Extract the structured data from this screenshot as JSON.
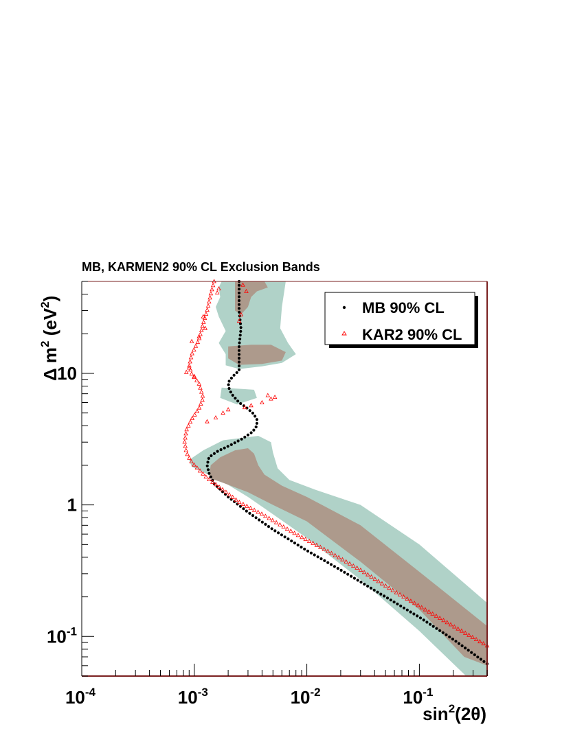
{
  "chart_data": {
    "type": "scatter",
    "title": "MB, KARMEN2 90% CL Exclusion Bands",
    "x_axis": {
      "label_base": "sin",
      "label_sup": "2",
      "label_rest": "(2θ)",
      "scale": "log",
      "range": [
        0.0001,
        0.4
      ],
      "tick_labels": [
        {
          "value": 0.0001,
          "base": "10",
          "exp": "-4"
        },
        {
          "value": 0.001,
          "base": "10",
          "exp": "-3"
        },
        {
          "value": 0.01,
          "base": "10",
          "exp": "-2"
        },
        {
          "value": 0.1,
          "base": "10",
          "exp": "-1"
        }
      ]
    },
    "y_axis": {
      "label_prefix": "Δ",
      "label_base": " m",
      "label_sup": "2",
      "label_mid": " (eV",
      "label_sup2": "2",
      "label_end": ")",
      "scale": "log",
      "range": [
        0.05,
        50
      ],
      "tick_labels": [
        {
          "value": 0.1,
          "base": "10",
          "exp": "-1"
        },
        {
          "value": 1,
          "text": "1"
        },
        {
          "value": 10,
          "text": "10"
        }
      ]
    },
    "legend": {
      "position": "top-right",
      "entries": [
        {
          "label": "MB 90% CL",
          "marker": "dot",
          "color": "#000000"
        },
        {
          "label": "KAR2 90% CL",
          "marker": "open-triangle",
          "color": "#ff0000"
        }
      ]
    },
    "colors": {
      "outer_band": "#b0d2c8",
      "inner_band": "#ad9a8c",
      "mb": "#000000",
      "kar2": "#ff0000",
      "frame_right_bottom": "#7a1f1f"
    },
    "bands": {
      "outer": [
        [
          [
            0.0012,
            50
          ],
          [
            0.0065,
            50
          ],
          [
            0.006,
            32
          ],
          [
            0.0058,
            22
          ],
          [
            0.0068,
            17
          ],
          [
            0.008,
            14
          ],
          [
            0.006,
            12
          ],
          [
            0.004,
            11.3
          ],
          [
            0.0025,
            10.8
          ],
          [
            0.0019,
            11.5
          ],
          [
            0.0019,
            14
          ],
          [
            0.00165,
            17
          ],
          [
            0.0019,
            21
          ],
          [
            0.00165,
            27
          ],
          [
            0.00155,
            32
          ],
          [
            0.0017,
            38
          ],
          [
            0.00165,
            45
          ],
          [
            0.00175,
            50
          ]
        ],
        [
          [
            0.00175,
            7.8
          ],
          [
            0.0034,
            7.5
          ],
          [
            0.0036,
            6.5
          ],
          [
            0.0024,
            5.8
          ],
          [
            0.0017,
            6.5
          ]
        ],
        [
          [
            0.0012,
            2.6
          ],
          [
            0.0018,
            3.1
          ],
          [
            0.0037,
            3.35
          ],
          [
            0.0048,
            3.0
          ],
          [
            0.005,
            2.5
          ],
          [
            0.0055,
            1.9
          ],
          [
            0.007,
            1.55
          ],
          [
            0.012,
            1.3
          ],
          [
            0.03,
            1.0
          ],
          [
            0.1,
            0.5
          ],
          [
            0.4,
            0.18
          ],
          [
            0.4,
            0.05
          ],
          [
            0.26,
            0.05
          ],
          [
            0.1,
            0.11
          ],
          [
            0.03,
            0.27
          ],
          [
            0.01,
            0.56
          ],
          [
            0.005,
            0.85
          ],
          [
            0.003,
            1.15
          ],
          [
            0.0018,
            1.5
          ],
          [
            0.00095,
            1.95
          ],
          [
            0.0009,
            2.2
          ]
        ]
      ],
      "inner": [
        [
          [
            0.0023,
            50
          ],
          [
            0.0042,
            50
          ],
          [
            0.0045,
            45
          ],
          [
            0.0036,
            42
          ],
          [
            0.0032,
            38
          ],
          [
            0.003,
            32
          ],
          [
            0.0026,
            28
          ],
          [
            0.0023,
            30
          ]
        ],
        [
          [
            0.002,
            16
          ],
          [
            0.0032,
            16.5
          ],
          [
            0.0048,
            16.5
          ],
          [
            0.0065,
            14.5
          ],
          [
            0.006,
            12.5
          ],
          [
            0.004,
            11.8
          ],
          [
            0.0025,
            11.6
          ],
          [
            0.002,
            13
          ]
        ],
        [
          [
            0.0014,
            2.0
          ],
          [
            0.0017,
            2.3
          ],
          [
            0.0023,
            2.6
          ],
          [
            0.003,
            2.7
          ],
          [
            0.0034,
            2.45
          ],
          [
            0.0037,
            2.0
          ],
          [
            0.0042,
            1.7
          ],
          [
            0.006,
            1.4
          ],
          [
            0.01,
            1.15
          ],
          [
            0.03,
            0.7
          ],
          [
            0.1,
            0.31
          ],
          [
            0.4,
            0.12
          ],
          [
            0.4,
            0.06
          ],
          [
            0.25,
            0.07
          ],
          [
            0.1,
            0.16
          ],
          [
            0.03,
            0.37
          ],
          [
            0.01,
            0.75
          ],
          [
            0.005,
            1.0
          ],
          [
            0.003,
            1.25
          ],
          [
            0.0017,
            1.5
          ],
          [
            0.00135,
            1.6
          ]
        ]
      ]
    },
    "series": [
      {
        "name": "MB 90% CL",
        "marker": "dot",
        "curve": [
          [
            0.0025,
            50
          ],
          [
            0.0025,
            30
          ],
          [
            0.0026,
            22
          ],
          [
            0.0025,
            16
          ],
          [
            0.0025,
            12
          ],
          [
            0.0025,
            10.5
          ],
          [
            0.0022,
            9.5
          ],
          [
            0.002,
            8.5
          ],
          [
            0.00205,
            7.5
          ],
          [
            0.0022,
            6.8
          ],
          [
            0.0025,
            6.0
          ],
          [
            0.0029,
            5.5
          ],
          [
            0.0033,
            5.0
          ],
          [
            0.0036,
            4.5
          ],
          [
            0.0036,
            4.0
          ],
          [
            0.0033,
            3.6
          ],
          [
            0.0027,
            3.2
          ],
          [
            0.0021,
            2.85
          ],
          [
            0.0016,
            2.55
          ],
          [
            0.00135,
            2.3
          ],
          [
            0.0013,
            2.0
          ],
          [
            0.00135,
            1.75
          ],
          [
            0.0015,
            1.45
          ],
          [
            0.002,
            1.15
          ],
          [
            0.003,
            0.88
          ],
          [
            0.005,
            0.65
          ],
          [
            0.01,
            0.45
          ],
          [
            0.02,
            0.32
          ],
          [
            0.05,
            0.2
          ],
          [
            0.1,
            0.14
          ],
          [
            0.2,
            0.095
          ],
          [
            0.4,
            0.062
          ]
        ],
        "count": 150
      },
      {
        "name": "KAR2 90% CL",
        "marker": "open-triangle",
        "curve": [
          [
            0.0015,
            50
          ],
          [
            0.0014,
            40
          ],
          [
            0.0013,
            30
          ],
          [
            0.0012,
            24
          ],
          [
            0.0011,
            18
          ],
          [
            0.00095,
            14
          ],
          [
            0.0009,
            11.5
          ],
          [
            0.00095,
            9.8
          ],
          [
            0.0011,
            8.4
          ],
          [
            0.0012,
            6.5
          ],
          [
            0.0011,
            5.4
          ],
          [
            0.00095,
            4.5
          ],
          [
            0.00085,
            3.7
          ],
          [
            0.00082,
            3.0
          ],
          [
            0.00085,
            2.5
          ],
          [
            0.00095,
            2.1
          ],
          [
            0.0011,
            1.85
          ],
          [
            0.0013,
            1.6
          ],
          [
            0.0017,
            1.35
          ],
          [
            0.0025,
            1.05
          ],
          [
            0.004,
            0.85
          ],
          [
            0.008,
            0.6
          ],
          [
            0.015,
            0.45
          ],
          [
            0.03,
            0.32
          ],
          [
            0.06,
            0.22
          ],
          [
            0.1,
            0.17
          ],
          [
            0.2,
            0.12
          ],
          [
            0.4,
            0.085
          ]
        ],
        "count": 130,
        "extra_points": [
          [
            0.0048,
            6.4
          ],
          [
            0.0045,
            6.8
          ],
          [
            0.0052,
            6.6
          ],
          [
            0.004,
            6.0
          ],
          [
            0.0032,
            5.7
          ],
          [
            0.0028,
            5.5
          ],
          [
            0.002,
            5.3
          ],
          [
            0.0018,
            5.0
          ],
          [
            0.00155,
            4.6
          ],
          [
            0.0013,
            4.3
          ],
          [
            0.0009,
            11.0
          ],
          [
            0.00085,
            10.2
          ],
          [
            0.001,
            9.5
          ],
          [
            0.00095,
            17.5
          ],
          [
            0.0011,
            19
          ],
          [
            0.0012,
            27
          ],
          [
            0.00125,
            22
          ],
          [
            0.0025,
            25
          ],
          [
            0.0026,
            28
          ],
          [
            0.0016,
            41
          ],
          [
            0.00165,
            44
          ],
          [
            0.0029,
            42
          ],
          [
            0.0027,
            47
          ]
        ]
      }
    ]
  }
}
